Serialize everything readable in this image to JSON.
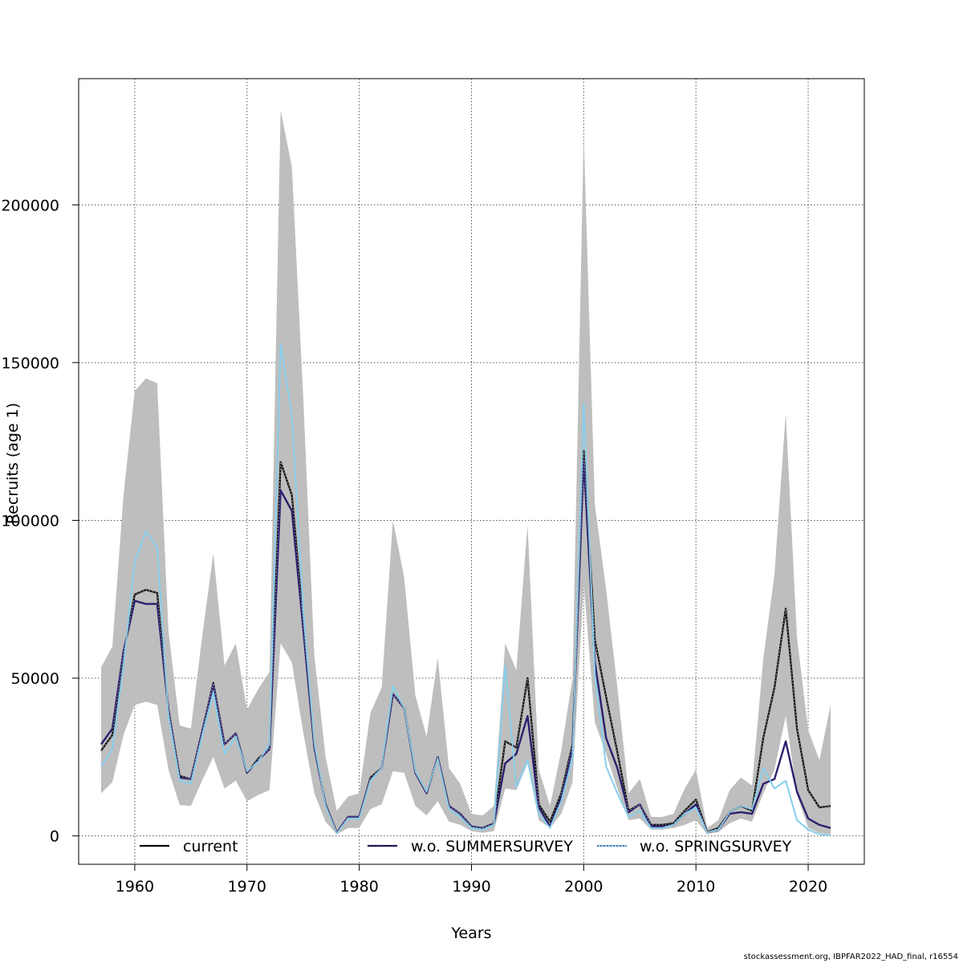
{
  "chart_data": {
    "type": "line",
    "title": "",
    "xlabel": "Years",
    "ylabel": "Recruits (age 1)",
    "xlim": [
      1955,
      2025
    ],
    "ylim": [
      -9000,
      240000
    ],
    "xticks": [
      1960,
      1970,
      1980,
      1990,
      2000,
      2010,
      2020
    ],
    "yticks": [
      0,
      50000,
      100000,
      150000,
      200000
    ],
    "grid": true,
    "legend_position": "bottom",
    "x": [
      1957,
      1958,
      1959,
      1960,
      1961,
      1962,
      1963,
      1964,
      1965,
      1966,
      1967,
      1968,
      1969,
      1970,
      1971,
      1972,
      1973,
      1974,
      1975,
      1976,
      1977,
      1978,
      1979,
      1980,
      1981,
      1982,
      1983,
      1984,
      1985,
      1986,
      1987,
      1988,
      1989,
      1990,
      1991,
      1992,
      1993,
      1994,
      1995,
      1996,
      1997,
      1998,
      1999,
      2000,
      2001,
      2002,
      2003,
      2004,
      2005,
      2006,
      2007,
      2008,
      2009,
      2010,
      2011,
      2012,
      2013,
      2014,
      2015,
      2016,
      2017,
      2018,
      2019,
      2020,
      2021,
      2022
    ],
    "confidence_band": {
      "name": "current 95% CI",
      "color": "#bebebe",
      "lower": [
        13500,
        17000,
        32000,
        41500,
        42500,
        41500,
        21000,
        9800,
        9500,
        17500,
        25000,
        15000,
        17500,
        11000,
        13000,
        14500,
        61000,
        55000,
        33000,
        13500,
        4500,
        500,
        2500,
        2500,
        8500,
        10000,
        20500,
        20000,
        9500,
        6500,
        11000,
        4500,
        3500,
        1500,
        1000,
        1500,
        15000,
        14500,
        23000,
        5000,
        2500,
        7000,
        17000,
        80000,
        36000,
        26000,
        15000,
        5000,
        5500,
        2000,
        2000,
        2500,
        3500,
        5000,
        700,
        1200,
        4000,
        5500,
        4500,
        13500,
        21000,
        38000,
        13000,
        2500,
        900,
        500
      ],
      "upper": [
        53500,
        60000,
        108000,
        141000,
        145000,
        143500,
        65000,
        35000,
        34000,
        63000,
        89500,
        54000,
        61000,
        40000,
        46500,
        52000,
        230000,
        212000,
        140000,
        57000,
        25000,
        8000,
        12500,
        13500,
        39000,
        47000,
        100000,
        82000,
        44500,
        31500,
        56500,
        21500,
        16500,
        7000,
        6500,
        9500,
        61000,
        52500,
        98500,
        21000,
        9500,
        27000,
        50000,
        222000,
        105000,
        78000,
        47000,
        13500,
        18000,
        6000,
        6000,
        7000,
        15000,
        21000,
        2500,
        5000,
        14500,
        18500,
        16000,
        56000,
        83000,
        134000,
        63000,
        33500,
        24000,
        41500
      ]
    },
    "series": [
      {
        "name": "current",
        "color": "#000000",
        "values": [
          27000,
          32000,
          58000,
          76500,
          78000,
          77000,
          40000,
          19000,
          18000,
          33000,
          48500,
          29000,
          32500,
          20000,
          24500,
          27500,
          118500,
          108000,
          68000,
          28000,
          10000,
          1000,
          6000,
          6000,
          18500,
          21500,
          45000,
          40500,
          20000,
          13500,
          25000,
          9500,
          7000,
          3000,
          2500,
          4000,
          30000,
          28000,
          50000,
          10000,
          4500,
          13500,
          29000,
          122000,
          62000,
          44000,
          26500,
          8000,
          10000,
          3500,
          3500,
          4000,
          8000,
          11500,
          1200,
          2500,
          7500,
          9500,
          8000,
          31000,
          47000,
          72000,
          34000,
          14500,
          9000,
          9500
        ]
      },
      {
        "name": "w.o. SUMMERSURVEY",
        "color": "#2a1f6e",
        "values": [
          29000,
          34000,
          58500,
          74500,
          73500,
          73500,
          40000,
          18500,
          18000,
          33000,
          48000,
          29000,
          32500,
          20000,
          24000,
          27500,
          109500,
          103000,
          66000,
          28000,
          10000,
          1000,
          6000,
          6000,
          18000,
          21500,
          45000,
          40500,
          20000,
          13500,
          25000,
          9500,
          7000,
          3000,
          2500,
          4000,
          23000,
          26000,
          38000,
          9000,
          3000,
          12000,
          28000,
          119000,
          55000,
          31000,
          21500,
          7500,
          10000,
          3000,
          3000,
          3500,
          7000,
          10000,
          1100,
          2000,
          7000,
          7500,
          7000,
          16500,
          18000,
          30000,
          14000,
          5500,
          3500,
          2500
        ]
      },
      {
        "name": "w.o. SPRINGSURVEY",
        "color": "#87ceeb",
        "values": [
          22000,
          27500,
          54000,
          87000,
          96500,
          91500,
          38000,
          17500,
          16500,
          31500,
          45500,
          26000,
          31500,
          20500,
          23500,
          29000,
          156000,
          133000,
          72000,
          29500,
          9500,
          800,
          5500,
          5500,
          17500,
          21500,
          47500,
          40500,
          20500,
          14000,
          24500,
          8500,
          6000,
          2500,
          2000,
          3500,
          54000,
          15500,
          24000,
          7000,
          2500,
          11000,
          24500,
          137000,
          51000,
          22000,
          13500,
          6000,
          8000,
          2500,
          2500,
          3500,
          7000,
          9000,
          1100,
          2000,
          7500,
          9500,
          8500,
          21500,
          15000,
          17500,
          5000,
          2000,
          500,
          200
        ]
      }
    ]
  },
  "footer": "stockassessment.org, IBPFAR2022_HAD_final, r16554"
}
